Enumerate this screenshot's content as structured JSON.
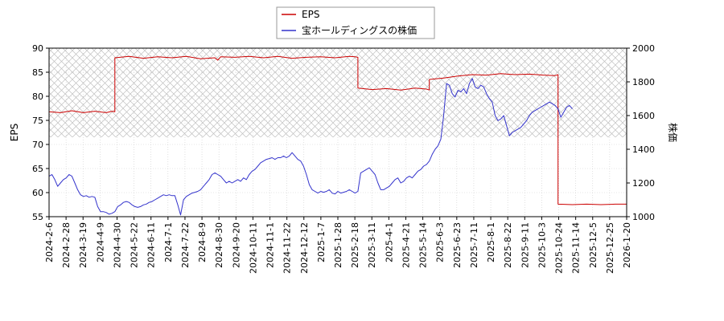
{
  "chart_data": {
    "type": "line",
    "legend_position": "top-center",
    "grid": true,
    "left_axis": {
      "label": "EPS",
      "ylim": [
        55,
        90
      ],
      "ticks": [
        55,
        60,
        65,
        70,
        75,
        80,
        85,
        90
      ]
    },
    "right_axis": {
      "label": "株価",
      "ylim": [
        1000,
        2000
      ],
      "ticks": [
        1000,
        1200,
        1400,
        1600,
        1800,
        2000
      ]
    },
    "x_tick_labels": [
      "2024-2-6",
      "2024-2-28",
      "2024-3-19",
      "2024-4-9",
      "2024-4-30",
      "2024-5-22",
      "2024-6-11",
      "2024-7-1",
      "2024-7-22",
      "2024-8-9",
      "2024-8-30",
      "2024-9-20",
      "2024-10-11",
      "2024-11-1",
      "2024-11-22",
      "2024-12-12",
      "2025-1-7",
      "2025-1-28",
      "2025-2-18",
      "2025-3-11",
      "2025-4-1",
      "2025-4-21",
      "2025-5-14",
      "2025-6-3",
      "2025-6-23",
      "2025-7-11",
      "2025-8-1",
      "2025-8-22",
      "2025-9-11",
      "2025-10-3",
      "2025-10-24",
      "2025-11-14",
      "2025-12-5",
      "2025-12-25",
      "2026-1-20"
    ],
    "shaded_band": {
      "axis": "left",
      "from": 71.5,
      "to": 90
    },
    "series": [
      {
        "name": "EPS",
        "axis": "left",
        "color": "#cc0000",
        "points": [
          [
            0,
            76.8
          ],
          [
            8,
            76.6
          ],
          [
            16,
            77.0
          ],
          [
            24,
            76.6
          ],
          [
            32,
            76.9
          ],
          [
            40,
            76.6
          ],
          [
            44,
            76.9
          ],
          [
            46,
            76.8
          ],
          [
            46,
            88.0
          ],
          [
            56,
            88.3
          ],
          [
            66,
            87.9
          ],
          [
            76,
            88.2
          ],
          [
            86,
            88.0
          ],
          [
            96,
            88.3
          ],
          [
            106,
            87.8
          ],
          [
            116,
            88.0
          ],
          [
            118,
            87.5
          ],
          [
            120,
            88.2
          ],
          [
            130,
            88.1
          ],
          [
            140,
            88.3
          ],
          [
            150,
            88.0
          ],
          [
            160,
            88.3
          ],
          [
            170,
            87.9
          ],
          [
            180,
            88.1
          ],
          [
            190,
            88.2
          ],
          [
            200,
            88.0
          ],
          [
            210,
            88.3
          ],
          [
            214,
            88.2
          ],
          [
            216,
            88.1
          ],
          [
            216,
            81.7
          ],
          [
            226,
            81.4
          ],
          [
            236,
            81.6
          ],
          [
            246,
            81.3
          ],
          [
            256,
            81.7
          ],
          [
            264,
            81.5
          ],
          [
            266,
            81.3
          ],
          [
            266,
            83.5
          ],
          [
            276,
            83.8
          ],
          [
            286,
            84.2
          ],
          [
            296,
            84.5
          ],
          [
            306,
            84.4
          ],
          [
            316,
            84.7
          ],
          [
            326,
            84.5
          ],
          [
            336,
            84.6
          ],
          [
            346,
            84.4
          ],
          [
            354,
            84.3
          ],
          [
            356,
            84.5
          ],
          [
            356,
            57.6
          ],
          [
            366,
            57.5
          ],
          [
            376,
            57.6
          ],
          [
            386,
            57.5
          ],
          [
            396,
            57.6
          ],
          [
            404,
            57.6
          ]
        ]
      },
      {
        "name": "宝ホールディングスの株価",
        "axis": "right",
        "color": "#3333cc",
        "points": [
          [
            0,
            1240
          ],
          [
            2,
            1250
          ],
          [
            4,
            1220
          ],
          [
            6,
            1180
          ],
          [
            8,
            1200
          ],
          [
            10,
            1220
          ],
          [
            12,
            1230
          ],
          [
            14,
            1250
          ],
          [
            16,
            1240
          ],
          [
            18,
            1200
          ],
          [
            20,
            1160
          ],
          [
            22,
            1130
          ],
          [
            24,
            1120
          ],
          [
            26,
            1125
          ],
          [
            28,
            1115
          ],
          [
            30,
            1120
          ],
          [
            32,
            1115
          ],
          [
            34,
            1060
          ],
          [
            36,
            1030
          ],
          [
            38,
            1030
          ],
          [
            40,
            1025
          ],
          [
            42,
            1015
          ],
          [
            44,
            1020
          ],
          [
            46,
            1030
          ],
          [
            48,
            1060
          ],
          [
            50,
            1070
          ],
          [
            52,
            1085
          ],
          [
            54,
            1090
          ],
          [
            56,
            1085
          ],
          [
            58,
            1070
          ],
          [
            60,
            1060
          ],
          [
            62,
            1055
          ],
          [
            64,
            1060
          ],
          [
            66,
            1070
          ],
          [
            68,
            1075
          ],
          [
            70,
            1085
          ],
          [
            72,
            1090
          ],
          [
            74,
            1100
          ],
          [
            76,
            1110
          ],
          [
            78,
            1120
          ],
          [
            80,
            1130
          ],
          [
            82,
            1125
          ],
          [
            84,
            1130
          ],
          [
            86,
            1125
          ],
          [
            88,
            1125
          ],
          [
            90,
            1070
          ],
          [
            92,
            1010
          ],
          [
            94,
            1100
          ],
          [
            96,
            1120
          ],
          [
            98,
            1130
          ],
          [
            100,
            1140
          ],
          [
            102,
            1145
          ],
          [
            104,
            1150
          ],
          [
            106,
            1160
          ],
          [
            108,
            1180
          ],
          [
            110,
            1200
          ],
          [
            112,
            1220
          ],
          [
            114,
            1250
          ],
          [
            116,
            1260
          ],
          [
            118,
            1250
          ],
          [
            120,
            1240
          ],
          [
            122,
            1220
          ],
          [
            124,
            1200
          ],
          [
            126,
            1210
          ],
          [
            128,
            1200
          ],
          [
            130,
            1210
          ],
          [
            132,
            1220
          ],
          [
            134,
            1210
          ],
          [
            136,
            1230
          ],
          [
            138,
            1220
          ],
          [
            140,
            1250
          ],
          [
            142,
            1270
          ],
          [
            144,
            1280
          ],
          [
            146,
            1300
          ],
          [
            148,
            1320
          ],
          [
            150,
            1330
          ],
          [
            152,
            1340
          ],
          [
            154,
            1345
          ],
          [
            156,
            1350
          ],
          [
            158,
            1340
          ],
          [
            160,
            1350
          ],
          [
            162,
            1350
          ],
          [
            164,
            1360
          ],
          [
            166,
            1350
          ],
          [
            168,
            1360
          ],
          [
            170,
            1380
          ],
          [
            172,
            1360
          ],
          [
            174,
            1340
          ],
          [
            176,
            1330
          ],
          [
            178,
            1300
          ],
          [
            180,
            1250
          ],
          [
            182,
            1190
          ],
          [
            184,
            1160
          ],
          [
            186,
            1150
          ],
          [
            188,
            1140
          ],
          [
            190,
            1150
          ],
          [
            192,
            1145
          ],
          [
            194,
            1150
          ],
          [
            196,
            1160
          ],
          [
            198,
            1140
          ],
          [
            200,
            1135
          ],
          [
            202,
            1150
          ],
          [
            204,
            1140
          ],
          [
            206,
            1145
          ],
          [
            208,
            1150
          ],
          [
            210,
            1160
          ],
          [
            212,
            1150
          ],
          [
            214,
            1140
          ],
          [
            216,
            1150
          ],
          [
            218,
            1260
          ],
          [
            220,
            1270
          ],
          [
            222,
            1280
          ],
          [
            224,
            1290
          ],
          [
            226,
            1270
          ],
          [
            228,
            1250
          ],
          [
            230,
            1200
          ],
          [
            232,
            1160
          ],
          [
            234,
            1160
          ],
          [
            236,
            1170
          ],
          [
            238,
            1180
          ],
          [
            240,
            1200
          ],
          [
            242,
            1220
          ],
          [
            244,
            1230
          ],
          [
            246,
            1200
          ],
          [
            248,
            1210
          ],
          [
            250,
            1230
          ],
          [
            252,
            1240
          ],
          [
            254,
            1230
          ],
          [
            256,
            1250
          ],
          [
            258,
            1270
          ],
          [
            260,
            1280
          ],
          [
            262,
            1300
          ],
          [
            264,
            1310
          ],
          [
            266,
            1330
          ],
          [
            268,
            1370
          ],
          [
            270,
            1400
          ],
          [
            272,
            1420
          ],
          [
            274,
            1460
          ],
          [
            276,
            1600
          ],
          [
            278,
            1790
          ],
          [
            280,
            1780
          ],
          [
            282,
            1730
          ],
          [
            284,
            1710
          ],
          [
            286,
            1750
          ],
          [
            288,
            1740
          ],
          [
            290,
            1760
          ],
          [
            292,
            1730
          ],
          [
            294,
            1790
          ],
          [
            296,
            1820
          ],
          [
            298,
            1770
          ],
          [
            300,
            1760
          ],
          [
            302,
            1780
          ],
          [
            304,
            1770
          ],
          [
            306,
            1730
          ],
          [
            308,
            1700
          ],
          [
            310,
            1680
          ],
          [
            312,
            1600
          ],
          [
            314,
            1570
          ],
          [
            316,
            1580
          ],
          [
            318,
            1600
          ],
          [
            320,
            1540
          ],
          [
            322,
            1480
          ],
          [
            324,
            1500
          ],
          [
            326,
            1510
          ],
          [
            328,
            1520
          ],
          [
            330,
            1530
          ],
          [
            332,
            1550
          ],
          [
            334,
            1570
          ],
          [
            336,
            1600
          ],
          [
            338,
            1620
          ],
          [
            340,
            1630
          ],
          [
            342,
            1640
          ],
          [
            344,
            1650
          ],
          [
            346,
            1660
          ],
          [
            348,
            1670
          ],
          [
            350,
            1680
          ],
          [
            352,
            1670
          ],
          [
            354,
            1660
          ],
          [
            356,
            1640
          ],
          [
            358,
            1590
          ],
          [
            360,
            1620
          ],
          [
            362,
            1650
          ],
          [
            364,
            1660
          ],
          [
            366,
            1640
          ]
        ]
      }
    ]
  }
}
